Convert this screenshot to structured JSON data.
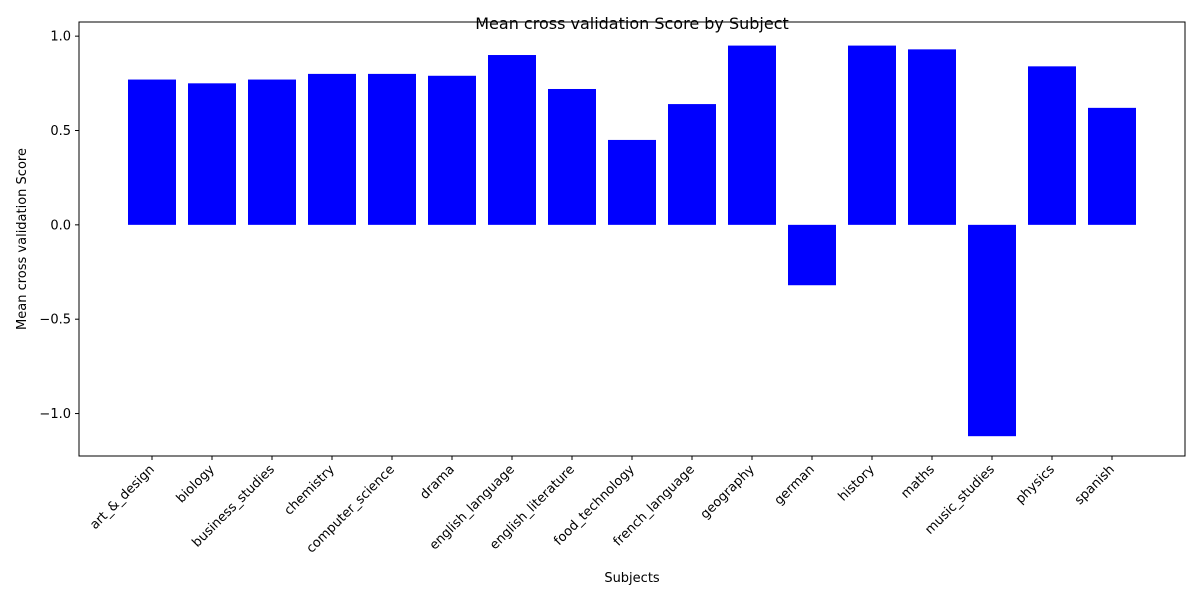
{
  "chart_data": {
    "type": "bar",
    "title": "Mean cross validation Score by Subject",
    "xlabel": "Subjects",
    "ylabel": "Mean cross validation Score",
    "categories": [
      "art_&_design",
      "biology",
      "business_studies",
      "chemistry",
      "computer_science",
      "drama",
      "english_language",
      "english_literature",
      "food_technology",
      "french_language",
      "geography",
      "german",
      "history",
      "maths",
      "music_studies",
      "physics",
      "spanish"
    ],
    "values": [
      0.77,
      0.75,
      0.77,
      0.8,
      0.8,
      0.79,
      0.9,
      0.72,
      0.45,
      0.64,
      0.95,
      -0.32,
      0.95,
      0.93,
      -1.12,
      0.84,
      0.62
    ],
    "ylim": [
      -1.225,
      1.075
    ],
    "yticks": [
      -1.0,
      -0.5,
      0.0,
      0.5,
      1.0
    ],
    "ytick_labels": [
      "−1.0",
      "−0.5",
      "0.0",
      "0.5",
      "1.0"
    ],
    "bar_color": "#0000ff",
    "grid": false,
    "legend": "none"
  }
}
